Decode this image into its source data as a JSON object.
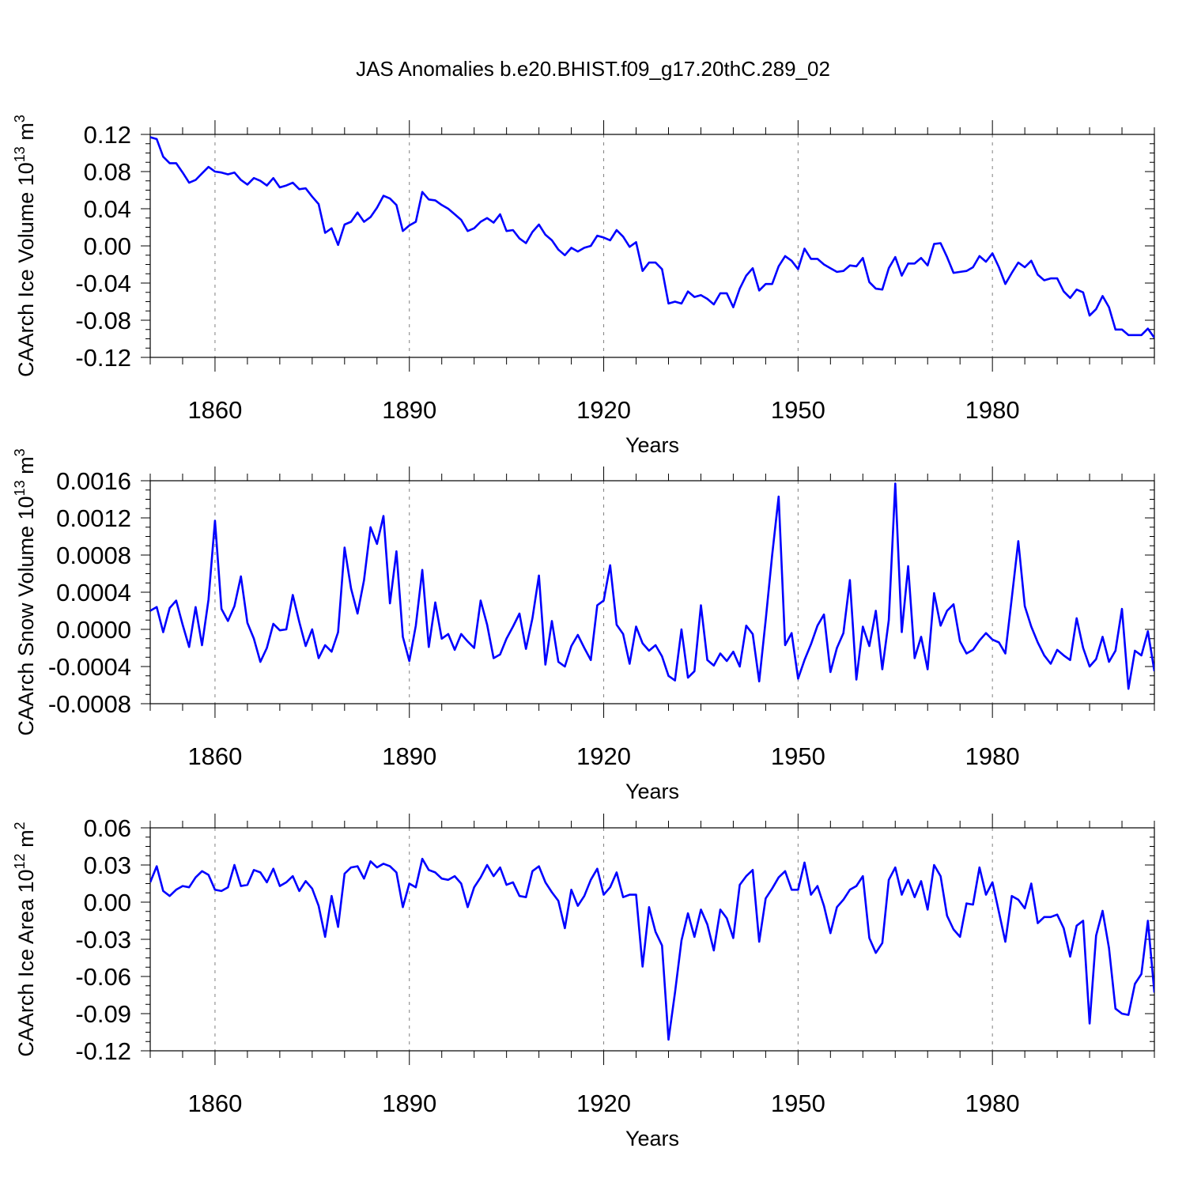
{
  "title": "JAS Anomalies b.e20.BHIST.f09_g17.20thC.289_02",
  "colors": {
    "line": "#0000ff",
    "grid": "#808080",
    "axis": "#000000"
  },
  "chart_data": [
    {
      "type": "line",
      "ylabel_main": "CAArch Ice Volume 10",
      "ylabel_exp": "13",
      "ylabel_unit": " m",
      "ylabel_unit_exp": "3",
      "xlabel": "Years",
      "xlim": [
        1850,
        2005
      ],
      "ylim": [
        -0.12,
        0.12
      ],
      "xticks": [
        1860,
        1890,
        1920,
        1950,
        1980
      ],
      "xtick_labels": [
        "1860",
        "1890",
        "1920",
        "1950",
        "1980"
      ],
      "yticks": [
        -0.12,
        -0.08,
        -0.04,
        0.0,
        0.04,
        0.08,
        0.12
      ],
      "ytick_labels": [
        "-0.12",
        "-0.08",
        "-0.04",
        "0.00",
        "0.04",
        "0.08",
        "0.12"
      ],
      "x_start": 1850,
      "values": [
        0.117,
        0.115,
        0.096,
        0.089,
        0.089,
        0.079,
        0.068,
        0.071,
        0.078,
        0.085,
        0.08,
        0.079,
        0.077,
        0.079,
        0.071,
        0.066,
        0.073,
        0.07,
        0.065,
        0.073,
        0.063,
        0.065,
        0.068,
        0.061,
        0.062,
        0.053,
        0.045,
        0.014,
        0.019,
        0.001,
        0.023,
        0.026,
        0.036,
        0.026,
        0.031,
        0.041,
        0.054,
        0.051,
        0.044,
        0.016,
        0.022,
        0.026,
        0.058,
        0.05,
        0.049,
        0.044,
        0.04,
        0.034,
        0.028,
        0.016,
        0.019,
        0.026,
        0.03,
        0.025,
        0.034,
        0.016,
        0.017,
        0.008,
        0.003,
        0.015,
        0.023,
        0.012,
        0.006,
        -0.004,
        -0.01,
        -0.002,
        -0.006,
        -0.002,
        0.0,
        0.011,
        0.009,
        0.006,
        0.017,
        0.01,
        -0.001,
        0.004,
        -0.027,
        -0.018,
        -0.018,
        -0.025,
        -0.062,
        -0.06,
        -0.062,
        -0.049,
        -0.055,
        -0.053,
        -0.057,
        -0.063,
        -0.051,
        -0.051,
        -0.066,
        -0.046,
        -0.032,
        -0.024,
        -0.048,
        -0.041,
        -0.041,
        -0.022,
        -0.011,
        -0.016,
        -0.025,
        -0.003,
        -0.014,
        -0.014,
        -0.02,
        -0.024,
        -0.028,
        -0.027,
        -0.021,
        -0.022,
        -0.013,
        -0.039,
        -0.046,
        -0.047,
        -0.024,
        -0.012,
        -0.032,
        -0.019,
        -0.019,
        -0.013,
        -0.021,
        0.002,
        0.003,
        -0.012,
        -0.029,
        -0.028,
        -0.027,
        -0.023,
        -0.011,
        -0.017,
        -0.008,
        -0.023,
        -0.041,
        -0.029,
        -0.018,
        -0.023,
        -0.016,
        -0.031,
        -0.037,
        -0.035,
        -0.035,
        -0.049,
        -0.056,
        -0.047,
        -0.05,
        -0.075,
        -0.068,
        -0.054,
        -0.066,
        -0.09,
        -0.09,
        -0.096,
        -0.096,
        -0.096,
        -0.089,
        -0.099
      ]
    },
    {
      "type": "line",
      "ylabel_main": "CAArch Snow Volume 10",
      "ylabel_exp": "13",
      "ylabel_unit": " m",
      "ylabel_unit_exp": "3",
      "xlabel": "Years",
      "xlim": [
        1850,
        2005
      ],
      "ylim": [
        -0.0008,
        0.0016
      ],
      "xticks": [
        1860,
        1890,
        1920,
        1950,
        1980
      ],
      "xtick_labels": [
        "1860",
        "1890",
        "1920",
        "1950",
        "1980"
      ],
      "yticks": [
        -0.0008,
        -0.0004,
        0.0,
        0.0004,
        0.0008,
        0.0012,
        0.0016
      ],
      "ytick_labels": [
        "-0.0008",
        "-0.0004",
        "0.0000",
        "0.0004",
        "0.0008",
        "0.0012",
        "0.0016"
      ],
      "x_start": 1850,
      "values": [
        0.0002,
        0.00024,
        -3e-05,
        0.00023,
        0.00031,
        5e-05,
        -0.00019,
        0.00024,
        -0.00017,
        0.00032,
        0.00117,
        0.00022,
        9e-05,
        0.00025,
        0.00057,
        7e-05,
        -0.0001,
        -0.00035,
        -0.0002,
        6e-05,
        -1e-05,
        0.0,
        0.00037,
        8e-05,
        -0.00018,
        0.0,
        -0.00031,
        -0.00017,
        -0.00024,
        -3e-05,
        0.00088,
        0.00044,
        0.00017,
        0.00053,
        0.0011,
        0.00092,
        0.00122,
        0.00028,
        0.00084,
        -8e-05,
        -0.00034,
        4e-05,
        0.00064,
        -0.00019,
        0.00029,
        -0.0001,
        -5e-05,
        -0.00022,
        -5e-05,
        -0.00013,
        -0.0002,
        0.00031,
        5e-05,
        -0.00031,
        -0.00027,
        -0.0001,
        3e-05,
        0.00017,
        -0.00021,
        0.00012,
        0.00058,
        -0.00038,
        9e-05,
        -0.00035,
        -0.0004,
        -0.00018,
        -6e-05,
        -0.0002,
        -0.00033,
        0.00026,
        0.00031,
        0.00069,
        5e-05,
        -5e-05,
        -0.00037,
        3e-05,
        -0.00015,
        -0.00023,
        -0.00017,
        -0.00029,
        -0.0005,
        -0.00055,
        0.0,
        -0.00052,
        -0.00045,
        0.00026,
        -0.00033,
        -0.00039,
        -0.00026,
        -0.00034,
        -0.00024,
        -0.0004,
        4e-05,
        -5e-05,
        -0.00056,
        0.0001,
        0.0008,
        0.00143,
        -0.00017,
        -4e-05,
        -0.00053,
        -0.00033,
        -0.00016,
        4e-05,
        0.00016,
        -0.00046,
        -0.0002,
        -4e-05,
        0.00053,
        -0.00054,
        3e-05,
        -0.00018,
        0.0002,
        -0.00043,
        0.0001,
        0.00157,
        -3e-05,
        0.00068,
        -0.00031,
        -8e-05,
        -0.00043,
        0.00039,
        4e-05,
        0.0002,
        0.00027,
        -0.00013,
        -0.00026,
        -0.00022,
        -0.00012,
        -4e-05,
        -0.00011,
        -0.00014,
        -0.00026,
        0.00034,
        0.00095,
        0.00025,
        3e-05,
        -0.00014,
        -0.00028,
        -0.00037,
        -0.00022,
        -0.00028,
        -0.00033,
        0.00012,
        -0.0002,
        -0.0004,
        -0.00032,
        -8e-05,
        -0.00035,
        -0.00023,
        0.00022,
        -0.00064,
        -0.00023,
        -0.00028,
        -2e-05,
        -0.00045
      ]
    },
    {
      "type": "line",
      "ylabel_main": "CAArch Ice Area 10",
      "ylabel_exp": "12",
      "ylabel_unit": " m",
      "ylabel_unit_exp": "2",
      "xlabel": "Years",
      "xlim": [
        1850,
        2005
      ],
      "ylim": [
        -0.12,
        0.06
      ],
      "xticks": [
        1860,
        1890,
        1920,
        1950,
        1980
      ],
      "xtick_labels": [
        "1860",
        "1890",
        "1920",
        "1950",
        "1980"
      ],
      "yticks": [
        -0.12,
        -0.09,
        -0.06,
        -0.03,
        0.0,
        0.03,
        0.06
      ],
      "ytick_labels": [
        "-0.12",
        "-0.09",
        "-0.06",
        "-0.03",
        "0.00",
        "0.03",
        "0.06"
      ],
      "x_start": 1850,
      "values": [
        0.016,
        0.029,
        0.009,
        0.005,
        0.01,
        0.013,
        0.012,
        0.02,
        0.025,
        0.022,
        0.01,
        0.009,
        0.012,
        0.03,
        0.013,
        0.014,
        0.026,
        0.024,
        0.016,
        0.027,
        0.013,
        0.016,
        0.021,
        0.009,
        0.017,
        0.011,
        -0.003,
        -0.028,
        0.005,
        -0.02,
        0.023,
        0.028,
        0.029,
        0.019,
        0.033,
        0.028,
        0.031,
        0.029,
        0.024,
        -0.004,
        0.015,
        0.012,
        0.035,
        0.026,
        0.024,
        0.019,
        0.018,
        0.021,
        0.015,
        -0.004,
        0.012,
        0.02,
        0.03,
        0.021,
        0.028,
        0.014,
        0.016,
        0.005,
        0.004,
        0.025,
        0.029,
        0.016,
        0.008,
        0.001,
        -0.021,
        0.01,
        -0.003,
        0.005,
        0.018,
        0.027,
        0.006,
        0.012,
        0.024,
        0.004,
        0.006,
        0.006,
        -0.052,
        -0.004,
        -0.024,
        -0.035,
        -0.111,
        -0.073,
        -0.031,
        -0.009,
        -0.028,
        -0.006,
        -0.018,
        -0.039,
        -0.006,
        -0.013,
        -0.029,
        0.014,
        0.021,
        0.026,
        -0.032,
        0.003,
        0.011,
        0.02,
        0.025,
        0.01,
        0.01,
        0.032,
        0.006,
        0.013,
        -0.003,
        -0.025,
        -0.004,
        0.002,
        0.01,
        0.013,
        0.021,
        -0.029,
        -0.041,
        -0.033,
        0.018,
        0.028,
        0.006,
        0.018,
        0.004,
        0.017,
        -0.006,
        0.03,
        0.021,
        -0.011,
        -0.022,
        -0.028,
        -0.001,
        -0.002,
        0.028,
        0.006,
        0.016,
        -0.008,
        -0.032,
        0.005,
        0.002,
        -0.005,
        0.015,
        -0.017,
        -0.012,
        -0.012,
        -0.01,
        -0.021,
        -0.044,
        -0.019,
        -0.015,
        -0.098,
        -0.027,
        -0.007,
        -0.037,
        -0.086,
        -0.09,
        -0.091,
        -0.066,
        -0.058,
        -0.015,
        -0.073
      ]
    }
  ]
}
